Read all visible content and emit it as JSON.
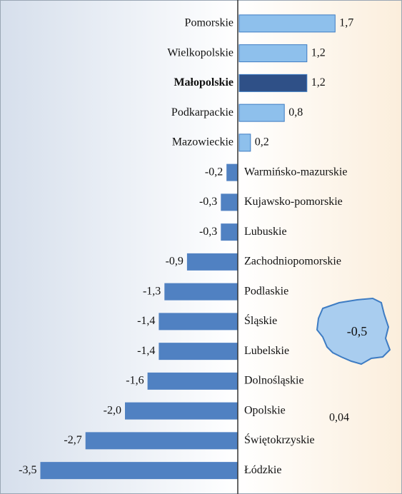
{
  "chart_data": {
    "type": "barh",
    "categories": [
      "Pomorskie",
      "Wielkopolskie",
      "Małopolskie",
      "Podkarpackie",
      "Mazowieckie",
      "Warmińsko-mazurskie",
      "Kujawsko-pomorskie",
      "Lubuskie",
      "Zachodniopomorskie",
      "Podlaskie",
      "Śląskie",
      "Lubelskie",
      "Dolnośląskie",
      "Opolskie",
      "Świętokrzyskie",
      "Łódzkie"
    ],
    "values": [
      1.7,
      1.2,
      1.2,
      0.8,
      0.2,
      -0.2,
      -0.3,
      -0.3,
      -0.9,
      -1.3,
      -1.4,
      -1.4,
      -1.6,
      -2.0,
      -2.7,
      -3.5
    ],
    "value_labels": [
      "1,7",
      "1,2",
      "1,2",
      "0,8",
      "0,2",
      "-0,2",
      "-0,3",
      "-0,3",
      "-0,9",
      "-1,3",
      "-1,4",
      "-1,4",
      "-1,6",
      "-2,0",
      "-2,7",
      "-3,5"
    ],
    "colors": [
      "#8ec0ec",
      "#8ec0ec",
      "#2f5087",
      "#8ec0ec",
      "#8ec0ec",
      "#5081c2",
      "#5081c2",
      "#5081c2",
      "#5081c2",
      "#5081c2",
      "#5081c2",
      "#5081c2",
      "#5081c2",
      "#5081c2",
      "#5081c2",
      "#5081c2"
    ],
    "highlight_index": 2,
    "annotations": [
      {
        "text": "-0,5"
      },
      {
        "text": "0,04"
      }
    ]
  }
}
